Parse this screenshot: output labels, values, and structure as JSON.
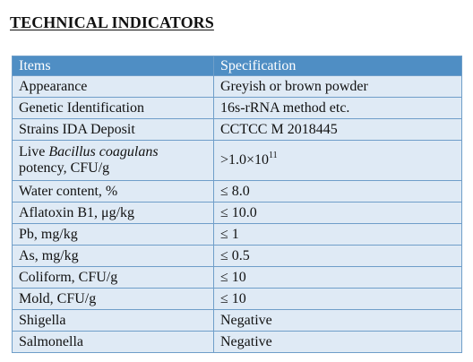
{
  "title": "TECHNICAL INDICATORS",
  "table": {
    "headers": [
      "Items",
      "Specification"
    ],
    "rows": [
      {
        "item": "Appearance",
        "spec": "Greyish or brown powder"
      },
      {
        "item": "Genetic Identification",
        "spec": "16s-rRNA method etc."
      },
      {
        "item": "Strains IDA Deposit",
        "spec": "CCTCC M 2018445"
      },
      {
        "item_prefix": "Live ",
        "item_species": "Bacillus coagulans",
        "item_suffix": "potency, CFU/g",
        "spec_base": ">1.0×10",
        "spec_exponent": "11"
      },
      {
        "item": "Water content, %",
        "spec": "≤ 8.0"
      },
      {
        "item": "Aflatoxin B1, μg/kg",
        "spec": "≤ 10.0"
      },
      {
        "item": "Pb, mg/kg",
        "spec": "≤ 1"
      },
      {
        "item": "As, mg/kg",
        "spec": "≤ 0.5"
      },
      {
        "item": "Coliform, CFU/g",
        "spec": "≤ 10"
      },
      {
        "item": "Mold, CFU/g",
        "spec": "≤ 10"
      },
      {
        "item": "Shigella",
        "spec": "Negative"
      },
      {
        "item": "Salmonella",
        "spec": "Negative"
      }
    ]
  },
  "colors": {
    "header_bg": "#4f8ec4",
    "row_bg": "#dfeaf5",
    "border": "#6f9ec9"
  }
}
